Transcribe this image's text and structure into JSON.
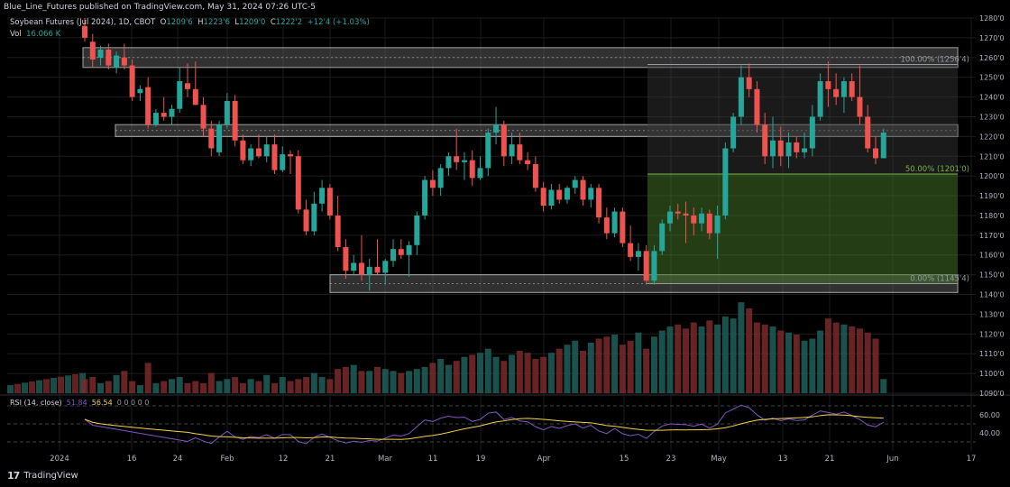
{
  "header": {
    "publisher": "Blue_Line_Futures published on TradingView.com, May 31, 2024 07:26 UTC-5"
  },
  "legend": {
    "symbol": "Soybean Futures (Jul 2024), 1D, CBOT",
    "o_label": "O",
    "o": "1209'6",
    "h_label": "H",
    "h": "1223'6",
    "l_label": "L",
    "l": "1209'0",
    "c_label": "C",
    "c": "1222'2",
    "change": "+12'4 (+1.03%)",
    "vol_label": "Vol",
    "vol": "16.066 K"
  },
  "rsi_legend": {
    "label": "RSI (14, close)",
    "v1": "51.84",
    "v2": "56.54",
    "tail": "0 0 0 0 0"
  },
  "footer": {
    "logo": "17",
    "brand": "TradingView"
  },
  "colors": {
    "up": "#26a69a",
    "down": "#ef5350",
    "rsi": "#7e57c2",
    "rsi_ma": "#f7d24a",
    "grid": "#1c1c1c"
  },
  "chart_data": {
    "type": "candlestick",
    "y_ticks": [
      "1280'0",
      "1270'0",
      "1260'0",
      "1250'0",
      "1240'0",
      "1230'0",
      "1220'0",
      "1210'0",
      "1200'0",
      "1190'0",
      "1180'0",
      "1170'0",
      "1160'0",
      "1150'0",
      "1140'0",
      "1130'0",
      "1120'0",
      "1110'0",
      "1100'0",
      "1090'0"
    ],
    "x_ticks": [
      "2024",
      "16",
      "24",
      "Feb",
      "12",
      "21",
      "Mar",
      "11",
      "19",
      "Apr",
      "15",
      "23",
      "May",
      "13",
      "21",
      "Jun",
      "17"
    ],
    "fib_labels": [
      "100.00% (1256'4)",
      "50.00% (1201'0)",
      "0.00% (1145'4)"
    ],
    "fib_values": [
      1256.5,
      1201.0,
      1145.5
    ],
    "zones": [
      [
        1255,
        1265
      ],
      [
        1220,
        1226
      ],
      [
        1141,
        1150
      ]
    ],
    "rsi_ticks": [
      "60.00",
      "40.00"
    ],
    "rsi_levels": [
      70,
      50,
      30
    ],
    "candles": [
      [
        1276,
        1280,
        1268,
        1270
      ],
      [
        1268,
        1272,
        1255,
        1259
      ],
      [
        1260,
        1266,
        1256,
        1264
      ],
      [
        1264,
        1267,
        1254,
        1256
      ],
      [
        1255,
        1263,
        1252,
        1261
      ],
      [
        1260,
        1267,
        1254,
        1256
      ],
      [
        1256,
        1259,
        1238,
        1240
      ],
      [
        1242,
        1246,
        1238,
        1244
      ],
      [
        1245,
        1250,
        1224,
        1226
      ],
      [
        1226,
        1234,
        1225,
        1232
      ],
      [
        1232,
        1240,
        1228,
        1230
      ],
      [
        1230,
        1236,
        1226,
        1234
      ],
      [
        1234,
        1255,
        1232,
        1248
      ],
      [
        1247,
        1257,
        1240,
        1244
      ],
      [
        1244,
        1258,
        1236,
        1236
      ],
      [
        1236,
        1240,
        1220,
        1224
      ],
      [
        1224,
        1228,
        1210,
        1214
      ],
      [
        1212,
        1228,
        1210,
        1226
      ],
      [
        1226,
        1242,
        1224,
        1238
      ],
      [
        1238,
        1241,
        1215,
        1218
      ],
      [
        1218,
        1221,
        1206,
        1208
      ],
      [
        1208,
        1216,
        1205,
        1214
      ],
      [
        1214,
        1221,
        1209,
        1210
      ],
      [
        1210,
        1220,
        1207,
        1216
      ],
      [
        1216,
        1221,
        1201,
        1203
      ],
      [
        1203,
        1215,
        1202,
        1211
      ],
      [
        1211,
        1213,
        1201,
        1210
      ],
      [
        1210,
        1213,
        1181,
        1183
      ],
      [
        1183,
        1188,
        1170,
        1172
      ],
      [
        1172,
        1192,
        1170,
        1186
      ],
      [
        1186,
        1198,
        1182,
        1194
      ],
      [
        1194,
        1196,
        1178,
        1180
      ],
      [
        1180,
        1190,
        1162,
        1164
      ],
      [
        1164,
        1168,
        1148,
        1152
      ],
      [
        1152,
        1160,
        1150,
        1156
      ],
      [
        1156,
        1170,
        1147,
        1150
      ],
      [
        1150,
        1158,
        1142,
        1154
      ],
      [
        1154,
        1168,
        1150,
        1151
      ],
      [
        1151,
        1158,
        1145,
        1157
      ],
      [
        1157,
        1168,
        1154,
        1163
      ],
      [
        1163,
        1168,
        1158,
        1160
      ],
      [
        1160,
        1167,
        1149,
        1165
      ],
      [
        1165,
        1182,
        1160,
        1180
      ],
      [
        1180,
        1200,
        1178,
        1198
      ],
      [
        1198,
        1203,
        1190,
        1194
      ],
      [
        1194,
        1206,
        1190,
        1204
      ],
      [
        1204,
        1212,
        1200,
        1210
      ],
      [
        1210,
        1224,
        1203,
        1207
      ],
      [
        1207,
        1212,
        1198,
        1208
      ],
      [
        1208,
        1213,
        1195,
        1199
      ],
      [
        1199,
        1210,
        1198,
        1204
      ],
      [
        1204,
        1224,
        1200,
        1222
      ],
      [
        1222,
        1235,
        1216,
        1226
      ],
      [
        1226,
        1228,
        1205,
        1210
      ],
      [
        1210,
        1222,
        1206,
        1216
      ],
      [
        1216,
        1222,
        1206,
        1208
      ],
      [
        1208,
        1212,
        1203,
        1206
      ],
      [
        1206,
        1210,
        1192,
        1194
      ],
      [
        1194,
        1197,
        1182,
        1185
      ],
      [
        1185,
        1196,
        1183,
        1193
      ],
      [
        1193,
        1196,
        1186,
        1188
      ],
      [
        1188,
        1195,
        1186,
        1194
      ],
      [
        1194,
        1200,
        1191,
        1198
      ],
      [
        1198,
        1200,
        1185,
        1188
      ],
      [
        1188,
        1196,
        1184,
        1194
      ],
      [
        1194,
        1196,
        1176,
        1179
      ],
      [
        1179,
        1184,
        1168,
        1171
      ],
      [
        1171,
        1184,
        1169,
        1182
      ],
      [
        1182,
        1184,
        1164,
        1166
      ],
      [
        1166,
        1175,
        1157,
        1159
      ],
      [
        1159,
        1166,
        1152,
        1162
      ],
      [
        1162,
        1165,
        1145,
        1147
      ],
      [
        1147,
        1165,
        1145,
        1162
      ],
      [
        1162,
        1178,
        1160,
        1176
      ],
      [
        1176,
        1185,
        1172,
        1182
      ],
      [
        1182,
        1186,
        1178,
        1181
      ],
      [
        1181,
        1187,
        1166,
        1180
      ],
      [
        1180,
        1184,
        1170,
        1176
      ],
      [
        1176,
        1184,
        1172,
        1181
      ],
      [
        1181,
        1183,
        1168,
        1171
      ],
      [
        1171,
        1185,
        1158,
        1180
      ],
      [
        1180,
        1217,
        1178,
        1214
      ],
      [
        1214,
        1232,
        1212,
        1230
      ],
      [
        1230,
        1256,
        1226,
        1250
      ],
      [
        1250,
        1257,
        1240,
        1244
      ],
      [
        1244,
        1248,
        1222,
        1226
      ],
      [
        1226,
        1232,
        1206,
        1210
      ],
      [
        1210,
        1230,
        1204,
        1218
      ],
      [
        1218,
        1225,
        1205,
        1210
      ],
      [
        1210,
        1222,
        1204,
        1217
      ],
      [
        1217,
        1220,
        1209,
        1212
      ],
      [
        1212,
        1222,
        1209,
        1214
      ],
      [
        1214,
        1236,
        1210,
        1230
      ],
      [
        1230,
        1252,
        1228,
        1248
      ],
      [
        1248,
        1258,
        1235,
        1244
      ],
      [
        1244,
        1252,
        1236,
        1240
      ],
      [
        1240,
        1250,
        1232,
        1248
      ],
      [
        1248,
        1252,
        1238,
        1240
      ],
      [
        1240,
        1256,
        1226,
        1230
      ],
      [
        1230,
        1236,
        1212,
        1214
      ],
      [
        1214,
        1220,
        1206,
        1209
      ],
      [
        1209,
        1224,
        1209,
        1222
      ]
    ],
    "volumes": [
      7,
      8,
      5,
      6,
      9,
      11,
      6,
      4,
      15,
      5,
      6,
      7,
      8,
      5,
      6,
      5,
      10,
      6,
      7,
      8,
      5,
      7,
      6,
      9,
      5,
      8,
      6,
      7,
      8,
      10,
      8,
      7,
      12,
      13,
      14,
      11,
      11,
      13,
      12,
      11,
      10,
      11,
      12,
      13,
      15,
      17,
      14,
      16,
      18,
      19,
      20,
      22,
      18,
      16,
      19,
      21,
      20,
      17,
      18,
      20,
      22,
      24,
      26,
      21,
      25,
      27,
      28,
      29,
      24,
      26,
      30,
      22,
      28,
      31,
      33,
      34,
      32,
      35,
      33,
      36,
      34,
      38,
      37,
      45,
      42,
      35,
      34,
      33,
      31,
      30,
      29,
      26,
      27,
      31,
      37,
      35,
      34,
      33,
      32,
      30,
      27,
      7
    ]
  }
}
